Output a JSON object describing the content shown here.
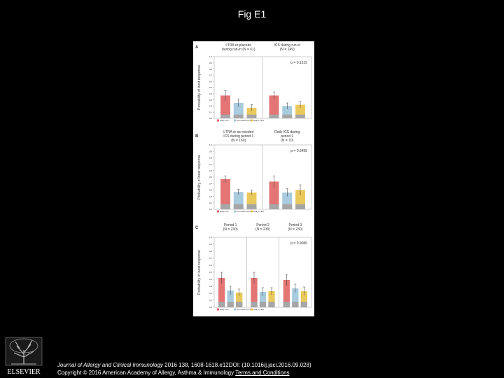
{
  "slide": {
    "title": "Fig E1",
    "citation_journal": "Journal of Allergy and Clinical Immunology",
    "citation_rest": " 2016 138, 1608-1618.e12DOI: (10.1016/j.jaci.2016.09.028)",
    "copyright": "Copyright © 2016 American Academy of Allergy, Asthma & Immunology",
    "terms_link": "Terms and Conditions",
    "publisher": "ELSEVIER"
  },
  "colors": {
    "red": "#e06666",
    "blue": "#9fc5d9",
    "yellow": "#e8c34a",
    "base": "#a6a6a6"
  },
  "chart_data": [
    {
      "type": "bar",
      "panel": "A",
      "ylabel": "Probability of best response",
      "ylim": [
        0,
        1.0
      ],
      "yticks": [
        "1.0",
        "0.9",
        "0.8",
        "0.7",
        "0.6",
        "0.5",
        "0.4",
        "0.3",
        "0.2",
        "0.1",
        "0.0"
      ],
      "groups": [
        {
          "label_lines": [
            "LTRA or placebo",
            "during run-in (N = 61)"
          ],
          "values": [
            0.37,
            0.25,
            0.17
          ]
        },
        {
          "label_lines": [
            "ICS during run-in",
            "(N = 149)"
          ],
          "values": [
            0.37,
            0.2,
            0.22
          ]
        }
      ],
      "errors": [
        [
          0.08,
          0.06,
          0.05
        ],
        [
          0.06,
          0.05,
          0.05
        ]
      ],
      "base": 0.06,
      "series": [
        {
          "name": "Daily ICS"
        },
        {
          "name": "As-needed ICS"
        },
        {
          "name": "Daily LTRA"
        }
      ],
      "annotation": "p = 0.1515"
    },
    {
      "type": "bar",
      "panel": "B",
      "ylabel": "Probability of best response",
      "ylim": [
        0,
        1.0
      ],
      "yticks": [
        "1.0",
        "0.9",
        "0.8",
        "0.7",
        "0.6",
        "0.5",
        "0.4",
        "0.3",
        "0.2",
        "0.1",
        "0.0"
      ],
      "groups": [
        {
          "label_lines": [
            "LTRA or as-needed",
            "ICS during period 1",
            "(N = 160)"
          ],
          "values": [
            0.47,
            0.27,
            0.26
          ]
        },
        {
          "label_lines": [
            "Daily ICS during",
            "period 1",
            "(N = 70)"
          ],
          "values": [
            0.43,
            0.26,
            0.3
          ]
        }
      ],
      "errors": [
        [
          0.05,
          0.04,
          0.04
        ],
        [
          0.09,
          0.06,
          0.08
        ]
      ],
      "base": 0.08,
      "series": [
        {
          "name": "Daily ICS"
        },
        {
          "name": "As-needed ICS"
        },
        {
          "name": "Daily LTRA"
        }
      ],
      "annotation": "p = 0.5495"
    },
    {
      "type": "bar",
      "panel": "C",
      "ylabel": "Probability of best response",
      "ylim": [
        0,
        1.0
      ],
      "yticks": [
        "1.0",
        "0.9",
        "0.8",
        "0.7",
        "0.6",
        "0.5",
        "0.4",
        "0.3",
        "0.2",
        "0.1",
        "0.0"
      ],
      "groups": [
        {
          "label_lines": [
            "Period 1",
            "(N = 230)"
          ],
          "values": [
            0.42,
            0.24,
            0.21
          ]
        },
        {
          "label_lines": [
            "Period 2",
            "(N = 230)"
          ],
          "values": [
            0.42,
            0.22,
            0.23
          ]
        },
        {
          "label_lines": [
            "Period 3",
            "(N = 230)"
          ],
          "values": [
            0.39,
            0.27,
            0.23
          ]
        }
      ],
      "errors": [
        [
          0.08,
          0.06,
          0.05
        ],
        [
          0.08,
          0.06,
          0.05
        ],
        [
          0.08,
          0.06,
          0.06
        ]
      ],
      "base": 0.08,
      "series": [
        {
          "name": "Daily ICS"
        },
        {
          "name": "As-needed ICS"
        },
        {
          "name": "Daily LTRA"
        }
      ],
      "annotation": "p = 0.9086"
    }
  ]
}
